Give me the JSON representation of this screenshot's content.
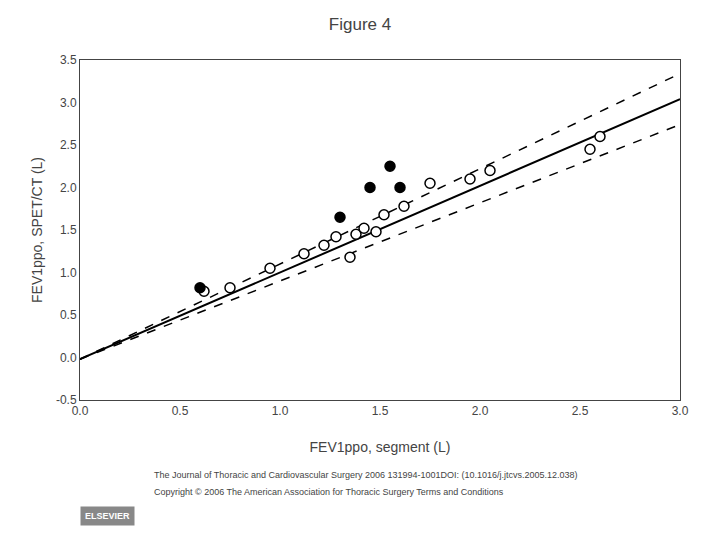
{
  "chart_data": {
    "type": "scatter",
    "title": "Figure 4",
    "x_label": "FEV1ppo, segment (L)",
    "y_label": "FEV1ppo, SPET/CT (L)",
    "xlim": [
      0,
      3
    ],
    "ylim": [
      -0.5,
      3.5
    ],
    "xticks": [
      {
        "value": 0,
        "label": "0.0"
      },
      0.5,
      {
        "value": 1.0,
        "label": "1.0"
      },
      1.5,
      {
        "value": 2.0,
        "label": "2.0"
      },
      2.5,
      {
        "value": 3.0,
        "label": "3.0"
      }
    ],
    "yticks": [
      -0.5,
      {
        "value": 0,
        "label": "0.0"
      },
      0.5,
      {
        "value": 1.0,
        "label": "1.0"
      },
      1.5,
      {
        "value": 2.0,
        "label": "2.0"
      },
      2.5,
      {
        "value": 3.0,
        "label": "3.0"
      },
      3.5
    ],
    "grid": false,
    "series": [
      {
        "type": "line",
        "line_style": "solid",
        "color": "#000000",
        "x": [
          0,
          3
        ],
        "values": [
          -0.02,
          3.04
        ]
      },
      {
        "type": "line",
        "line_style": "dashed",
        "color": "#000000",
        "x": [
          0,
          3
        ],
        "values": [
          -0.02,
          3.34
        ]
      },
      {
        "type": "line",
        "line_style": "dashed",
        "color": "#000000",
        "x": [
          0,
          3
        ],
        "values": [
          -0.02,
          2.74
        ]
      },
      {
        "type": "scatter",
        "marker": "open circle",
        "color": "#000000",
        "x": [
          0.62,
          0.75,
          0.95,
          1.12,
          1.22,
          1.28,
          1.35,
          1.38,
          1.42,
          1.48,
          1.52,
          1.62,
          1.75,
          1.95,
          2.05,
          2.55,
          2.6
        ],
        "values": [
          0.78,
          0.82,
          1.05,
          1.22,
          1.32,
          1.42,
          1.18,
          1.45,
          1.52,
          1.48,
          1.68,
          1.78,
          2.05,
          2.1,
          2.2,
          2.45,
          2.6
        ]
      },
      {
        "type": "scatter",
        "marker": "circle",
        "color": "#000000",
        "x": [
          0.6,
          1.3,
          1.45,
          1.55,
          1.6
        ],
        "values": [
          0.82,
          1.65,
          2.0,
          2.25,
          2.0
        ]
      }
    ],
    "annotations": [
      "The Journal of Thoracic and Cardiovascular Surgery 2006 131994-1001DOI: (10.1016/j.jtcvs.2005.12.038)",
      "Copyright © 2006 The American Association for Thoracic Surgery Terms and Conditions",
      "ELSEVIER"
    ]
  }
}
